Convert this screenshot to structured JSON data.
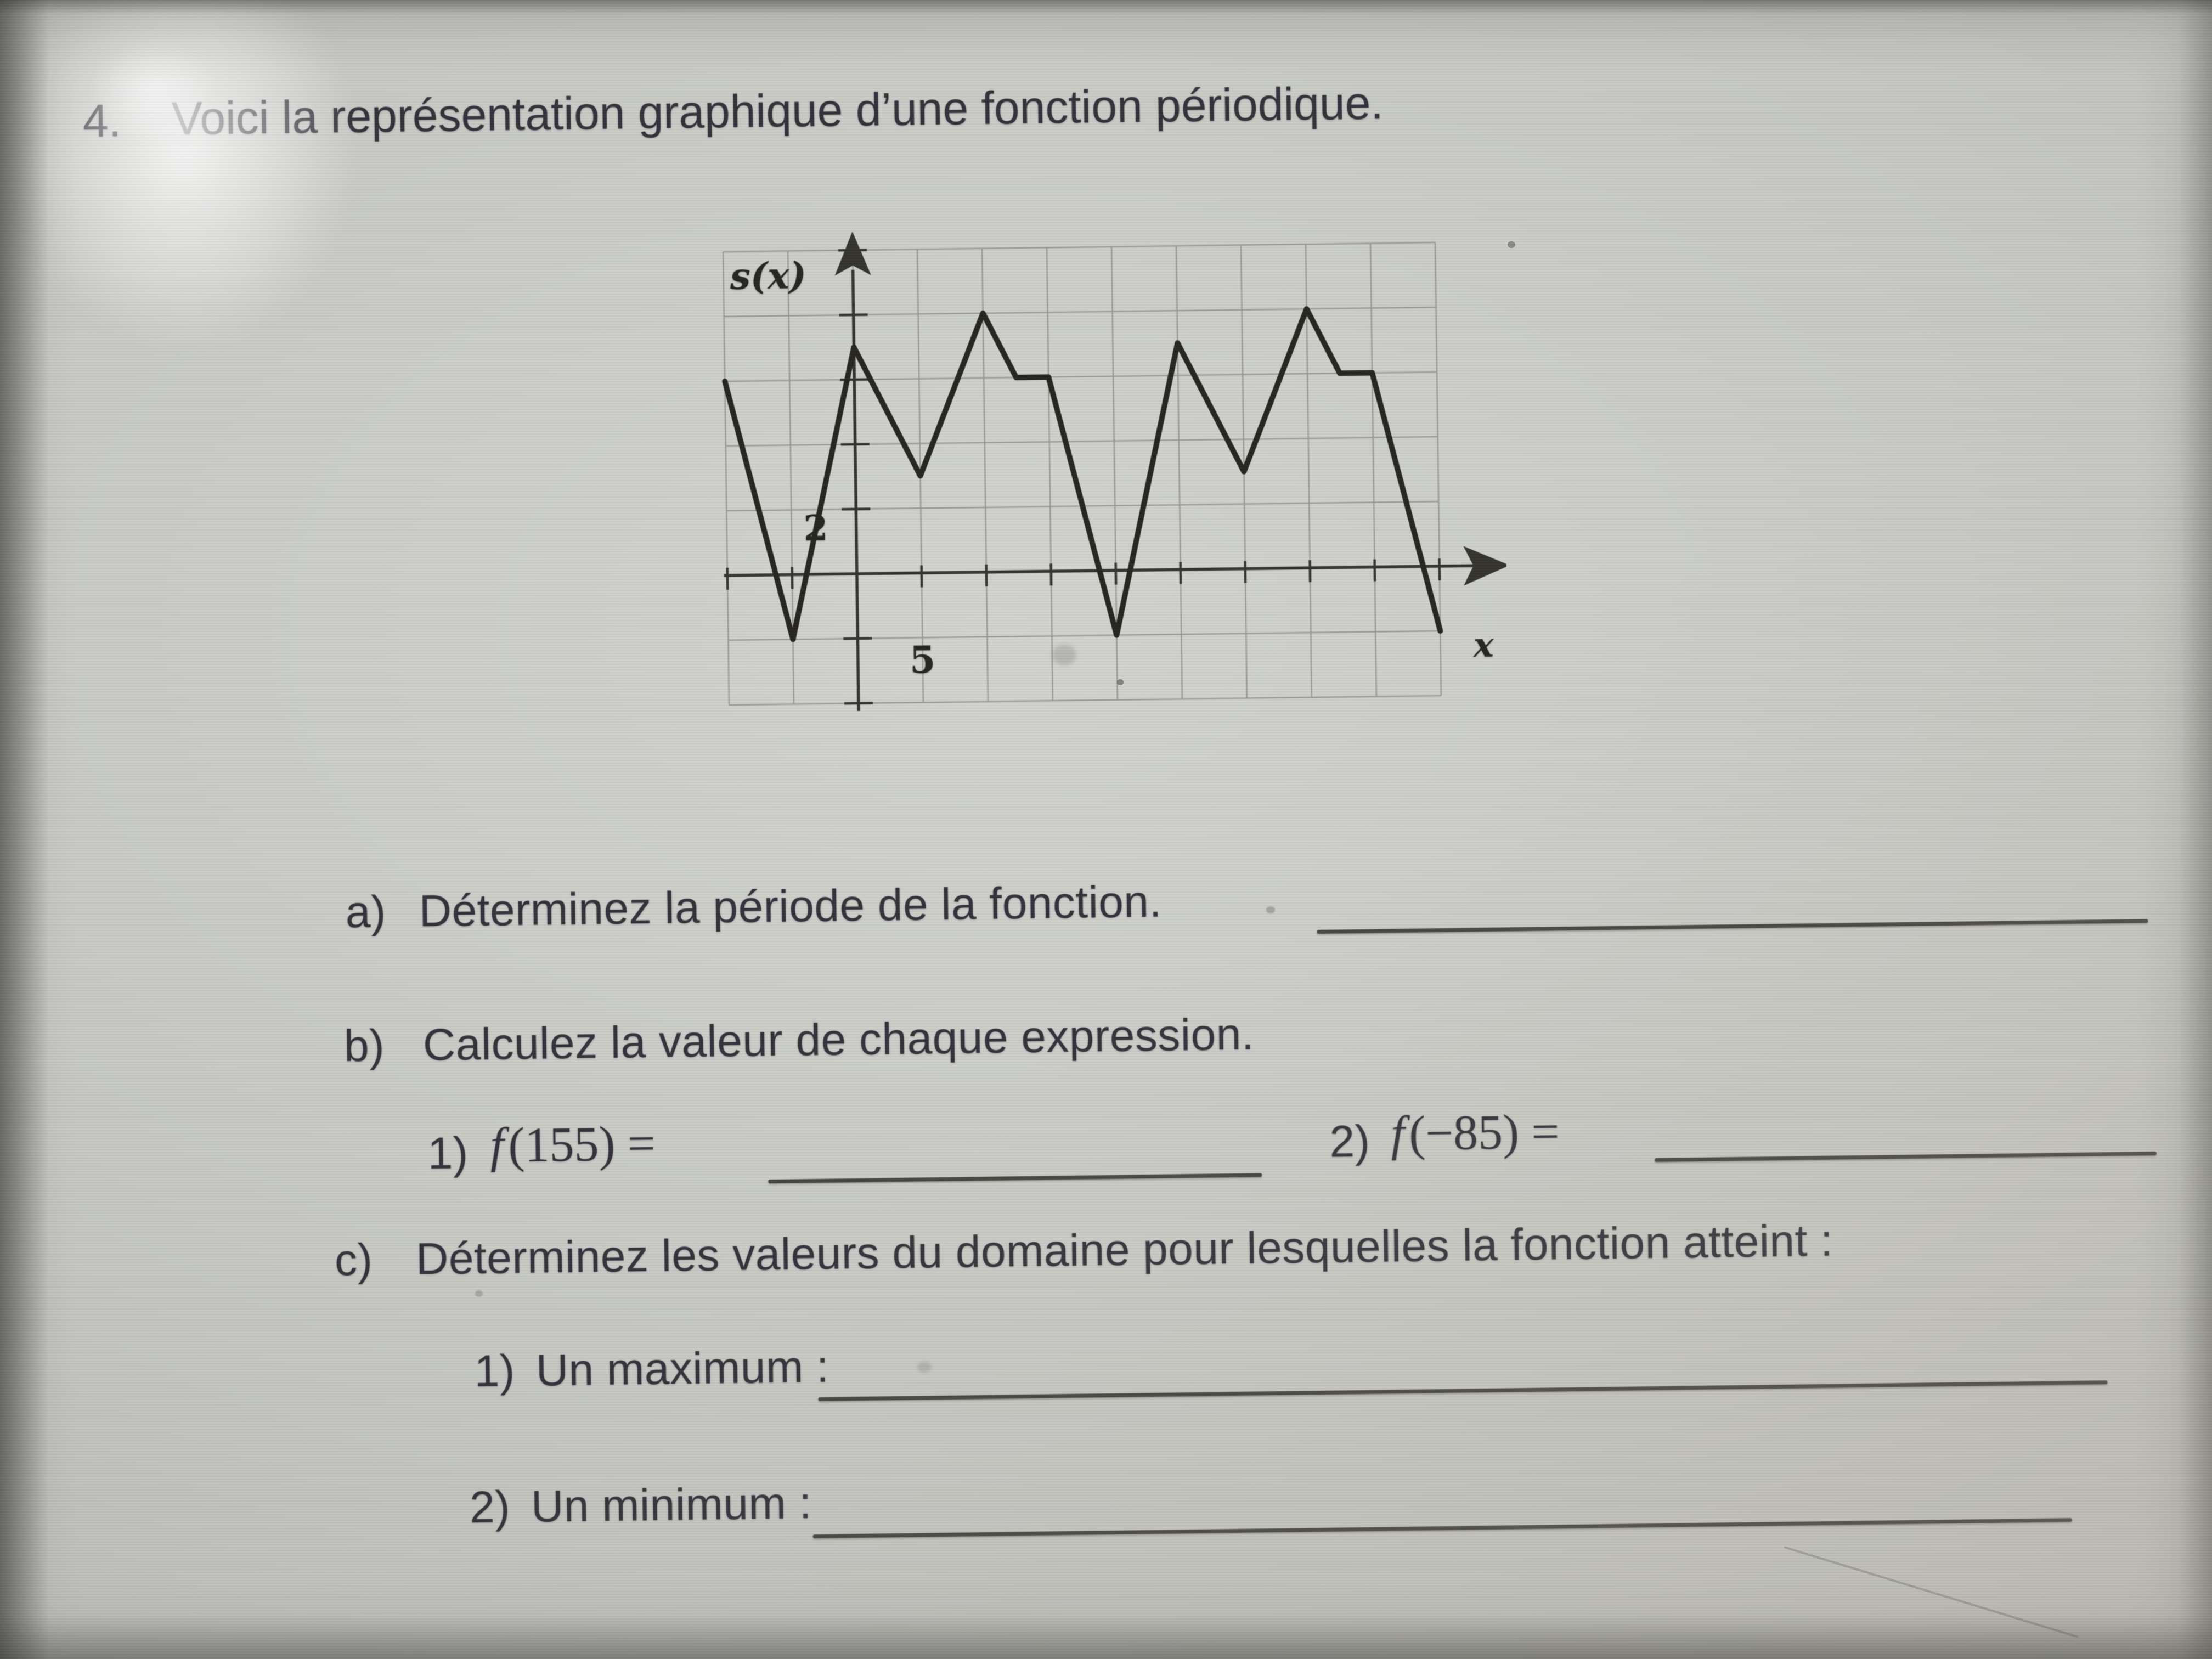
{
  "header": {
    "number": "4.",
    "title": "Voici la représentation graphique d’une fonction périodique."
  },
  "graph": {
    "chart_data": {
      "type": "line",
      "title": "",
      "xlabel": "x",
      "ylabel": "s(x)",
      "grid": true,
      "xlim": [
        -10,
        45
      ],
      "ylim": [
        -4,
        10
      ],
      "x_step": 5,
      "y_step": 2,
      "x_tick": {
        "label": "5",
        "value": 5
      },
      "y_tick": {
        "label": "2",
        "value": 2
      },
      "points": [
        [
          -10,
          6
        ],
        [
          -5,
          -2
        ],
        [
          0,
          7
        ],
        [
          5,
          3
        ],
        [
          10,
          8
        ],
        [
          12.5,
          6
        ],
        [
          15,
          6
        ],
        [
          20,
          -2
        ],
        [
          25,
          7
        ],
        [
          30,
          3
        ],
        [
          35,
          8
        ],
        [
          37.5,
          6
        ],
        [
          40,
          6
        ],
        [
          45,
          -2
        ]
      ]
    }
  },
  "items": {
    "a": {
      "label": "a)",
      "text": "Déterminez la période de la fonction."
    },
    "b": {
      "label": "b)",
      "text": "Calculez la valeur de chaque expression."
    },
    "b1": {
      "label": "1)",
      "f": "f",
      "expr": "(155) ="
    },
    "b2": {
      "label": "2)",
      "f": "f",
      "expr": "(−85) ="
    },
    "c": {
      "label": "c)",
      "text": "Déterminez les valeurs du domaine pour lesquelles la fonction atteint :"
    },
    "c1": {
      "label": "1)",
      "text": "Un maximum :"
    },
    "c2": {
      "label": "2)",
      "text": "Un minimum :"
    }
  }
}
